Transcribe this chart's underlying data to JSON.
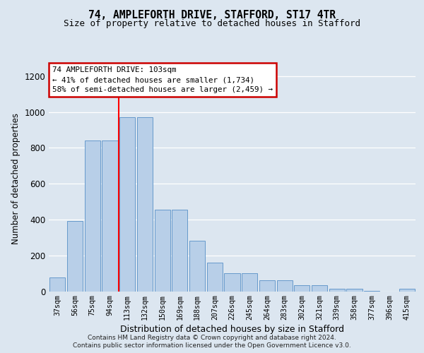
{
  "title": "74, AMPLEFORTH DRIVE, STAFFORD, ST17 4TR",
  "subtitle": "Size of property relative to detached houses in Stafford",
  "xlabel": "Distribution of detached houses by size in Stafford",
  "ylabel": "Number of detached properties",
  "categories": [
    "37sqm",
    "56sqm",
    "75sqm",
    "94sqm",
    "113sqm",
    "132sqm",
    "150sqm",
    "169sqm",
    "188sqm",
    "207sqm",
    "226sqm",
    "245sqm",
    "264sqm",
    "283sqm",
    "302sqm",
    "321sqm",
    "339sqm",
    "358sqm",
    "377sqm",
    "396sqm",
    "415sqm"
  ],
  "values": [
    75,
    390,
    840,
    840,
    970,
    970,
    455,
    455,
    280,
    160,
    100,
    100,
    60,
    60,
    32,
    32,
    12,
    12,
    3,
    0,
    12
  ],
  "bar_color": "#b8cfe8",
  "bar_edge_color": "#6699cc",
  "bg_color": "#dce6f0",
  "plot_bg_color": "#dce6f0",
  "grid_color": "#ffffff",
  "annotation_text": "74 AMPLEFORTH DRIVE: 103sqm\n← 41% of detached houses are smaller (1,734)\n58% of semi-detached houses are larger (2,459) →",
  "annotation_box_color": "#ffffff",
  "annotation_box_edge_color": "#cc0000",
  "property_line_x": 3.5,
  "ylim": [
    0,
    1260
  ],
  "yticks": [
    0,
    200,
    400,
    600,
    800,
    1000,
    1200
  ],
  "footer_line1": "Contains HM Land Registry data © Crown copyright and database right 2024.",
  "footer_line2": "Contains public sector information licensed under the Open Government Licence v3.0."
}
